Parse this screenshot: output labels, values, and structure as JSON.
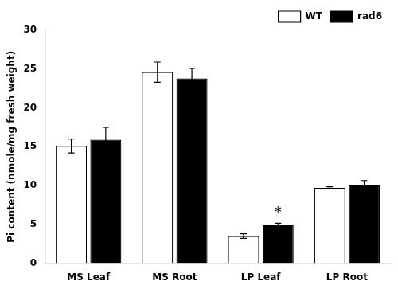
{
  "chart_data": {
    "type": "bar",
    "categories": [
      "MS Leaf",
      "MS Root",
      "LP Leaf",
      "LP Root"
    ],
    "series": [
      {
        "name": "WT",
        "color": "#ffffff",
        "values": [
          15.1,
          24.6,
          3.5,
          9.7
        ],
        "errors": [
          0.9,
          1.3,
          0.3,
          0.15
        ]
      },
      {
        "name": "rad6",
        "color": "#000000",
        "values": [
          15.9,
          23.8,
          4.9,
          10.1
        ],
        "errors": [
          1.6,
          1.3,
          0.25,
          0.55
        ]
      }
    ],
    "ylabel": "Pi content (nmole/mg fresh weight)",
    "ylim": [
      0,
      30
    ],
    "yticks": [
      0,
      5,
      10,
      15,
      20,
      25,
      30
    ],
    "grid": false,
    "legend": "upper right",
    "annotations": [
      {
        "text": "*",
        "category": "LP Leaf",
        "series": "rad6"
      }
    ]
  }
}
